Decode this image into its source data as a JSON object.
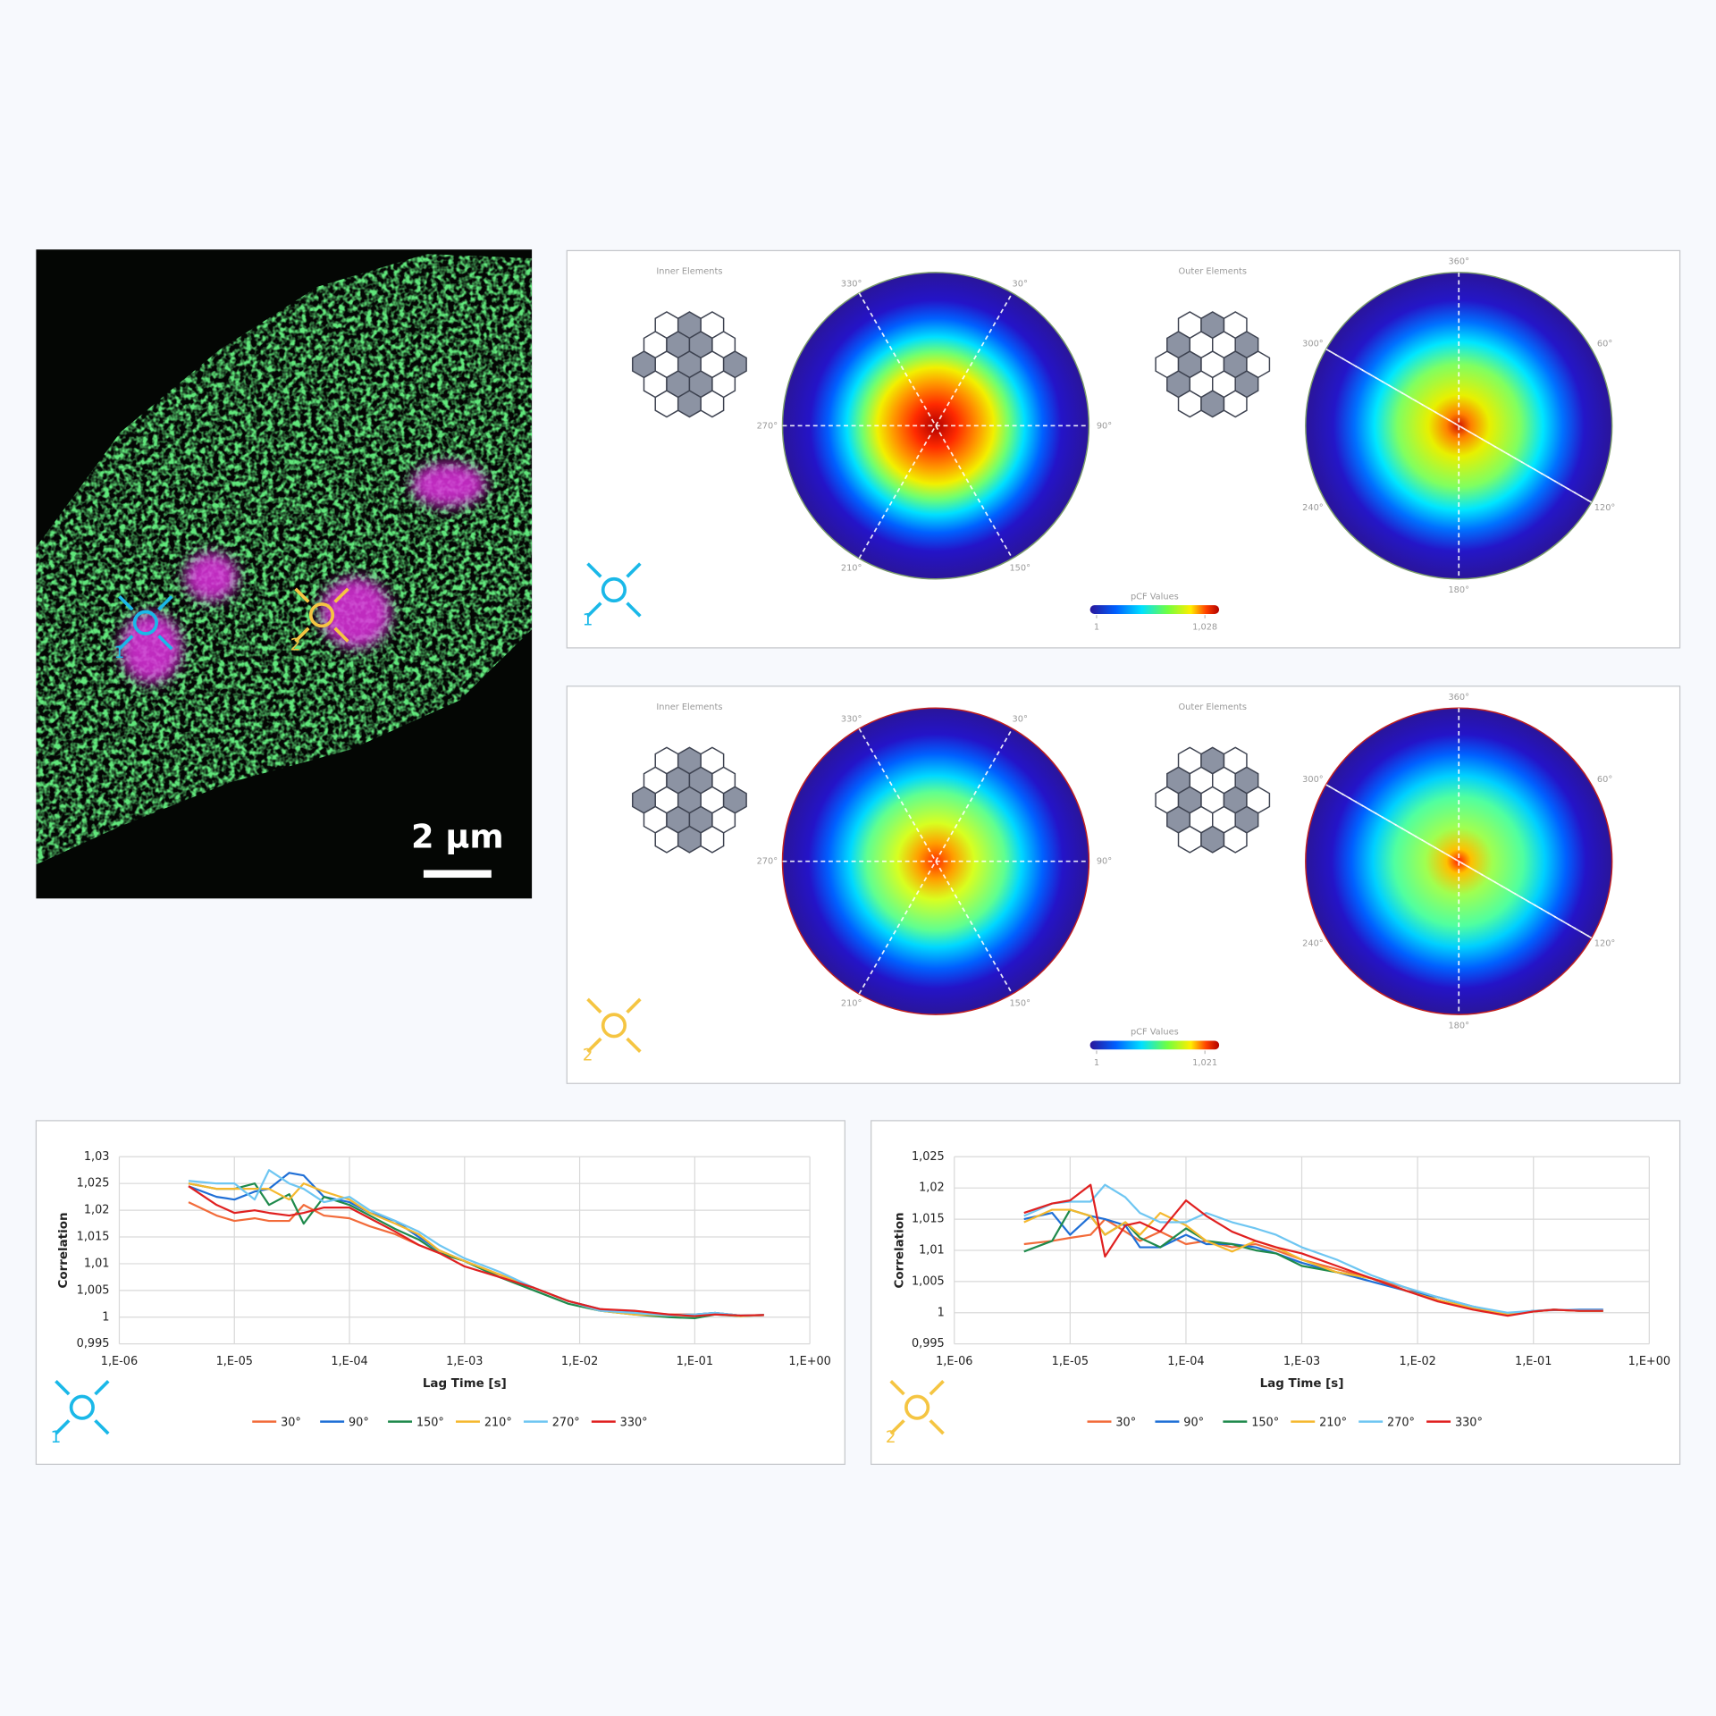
{
  "micrograph": {
    "scale_bar": "2 µm",
    "markers": [
      "1",
      "2"
    ]
  },
  "pcf_panels": [
    {
      "marker": "1",
      "inner_title": "Inner Elements",
      "outer_title": "Outer Elements",
      "inner_angles": [
        {
          "value": 330,
          "label": "330°"
        },
        {
          "value": 30,
          "label": "30°"
        },
        {
          "value": 270,
          "label": "270°"
        },
        {
          "value": 90,
          "label": "90°"
        },
        {
          "value": 210,
          "label": "210°"
        },
        {
          "value": 150,
          "label": "150°"
        }
      ],
      "outer_angles": [
        {
          "value": 360,
          "label": "360°"
        },
        {
          "value": 60,
          "label": "60°"
        },
        {
          "value": 300,
          "label": "300°"
        },
        {
          "value": 240,
          "label": "240°"
        },
        {
          "value": 120,
          "label": "120°"
        },
        {
          "value": 180,
          "label": "180°"
        }
      ],
      "colorbar_title": "pCF Values",
      "colorbar_ticks": [
        1,
        {
          "value": 1.028,
          "label": "1,028"
        }
      ]
    },
    {
      "marker": "2",
      "inner_title": "Inner Elements",
      "outer_title": "Outer Elements",
      "inner_angles": [
        {
          "value": 330,
          "label": "330°"
        },
        {
          "value": 30,
          "label": "30°"
        },
        {
          "value": 270,
          "label": "270°"
        },
        {
          "value": 90,
          "label": "90°"
        },
        {
          "value": 210,
          "label": "210°"
        },
        {
          "value": 150,
          "label": "150°"
        }
      ],
      "outer_angles": [
        {
          "value": 360,
          "label": "360°"
        },
        {
          "value": 60,
          "label": "60°"
        },
        {
          "value": 300,
          "label": "300°"
        },
        {
          "value": 240,
          "label": "240°"
        },
        {
          "value": 120,
          "label": "120°"
        },
        {
          "value": 180,
          "label": "180°"
        }
      ],
      "colorbar_title": "pCF Values",
      "colorbar_ticks": [
        1,
        {
          "value": 1.021,
          "label": "1,021"
        }
      ]
    }
  ],
  "chart_data": [
    {
      "type": "line",
      "marker": "1",
      "xlabel": "Lag Time [s]",
      "ylabel": "Correlation",
      "xlog": true,
      "grid": true,
      "legend": "bottom",
      "x": [
        4e-06,
        7e-06,
        1e-05,
        1.5e-05,
        2e-05,
        3e-05,
        4e-05,
        6e-05,
        0.0001,
        0.00015,
        0.00025,
        0.0004,
        0.0006,
        0.001,
        0.002,
        0.004,
        0.008,
        0.015,
        0.03,
        0.06,
        0.1,
        0.15,
        0.25,
        0.4
      ],
      "xlim": [
        1e-06,
        1
      ],
      "xticks": [
        {
          "value": 1e-06,
          "label": "1,E-06"
        },
        {
          "value": 1e-05,
          "label": "1,E-05"
        },
        {
          "value": 0.0001,
          "label": "1,E-04"
        },
        {
          "value": 0.001,
          "label": "1,E-03"
        },
        {
          "value": 0.01,
          "label": "1,E-02"
        },
        {
          "value": 0.1,
          "label": "1,E-01"
        },
        {
          "value": 1,
          "label": "1,E+00"
        }
      ],
      "ylim": [
        0.995,
        1.03
      ],
      "yticks": [
        {
          "value": 0.995,
          "label": "0,995"
        },
        1,
        {
          "value": 1.005,
          "label": "1,005"
        },
        {
          "value": 1.01,
          "label": "1,01"
        },
        {
          "value": 1.015,
          "label": "1,015"
        },
        {
          "value": 1.02,
          "label": "1,02"
        },
        {
          "value": 1.025,
          "label": "1,025"
        },
        {
          "value": 1.03,
          "label": "1,03"
        }
      ],
      "series": [
        {
          "name": "30°",
          "color": "#f26b3a",
          "values": [
            1.0215,
            1.019,
            1.018,
            1.0185,
            1.018,
            1.018,
            1.021,
            1.019,
            1.0185,
            1.017,
            1.0155,
            1.0135,
            1.012,
            1.0105,
            1.008,
            1.0055,
            1.003,
            1.0015,
            1.001,
            1.0005,
            1.0005,
            1.0008,
            1.0003,
            1.0004
          ]
        },
        {
          "name": "90°",
          "color": "#1f6fd6",
          "values": [
            1.0245,
            1.0225,
            1.022,
            1.0235,
            1.024,
            1.027,
            1.0265,
            1.0225,
            1.0215,
            1.0195,
            1.018,
            1.015,
            1.0125,
            1.0105,
            1.0075,
            1.0055,
            1.003,
            1.0015,
            1.0008,
            1.0004,
            1.0005,
            1.0008,
            1.0003,
            1.0004
          ]
        },
        {
          "name": "150°",
          "color": "#1f8a4c",
          "values": [
            1.025,
            1.024,
            1.024,
            1.025,
            1.021,
            1.023,
            1.0175,
            1.0225,
            1.021,
            1.019,
            1.0165,
            1.0145,
            1.012,
            1.0105,
            1.0075,
            1.005,
            1.0025,
            1.0012,
            1.0005,
            1.0,
            0.9998,
            1.0005,
            1.0002,
            1.0004
          ]
        },
        {
          "name": "210°",
          "color": "#f5b82e",
          "values": [
            1.025,
            1.024,
            1.024,
            1.024,
            1.024,
            1.022,
            1.025,
            1.0235,
            1.022,
            1.0195,
            1.0175,
            1.0155,
            1.0125,
            1.0105,
            1.008,
            1.0055,
            1.003,
            1.0012,
            1.0005,
            1.0003,
            1.0005,
            1.0006,
            1.0002,
            1.0004
          ]
        },
        {
          "name": "270°",
          "color": "#6ec6f2",
          "values": [
            1.0255,
            1.025,
            1.025,
            1.022,
            1.0275,
            1.025,
            1.024,
            1.0215,
            1.0225,
            1.02,
            1.018,
            1.016,
            1.0135,
            1.011,
            1.0085,
            1.0055,
            1.003,
            1.0012,
            1.0008,
            1.0003,
            1.0005,
            1.0008,
            1.0003,
            1.0004
          ]
        },
        {
          "name": "330°",
          "color": "#e02020",
          "values": [
            1.0245,
            1.021,
            1.0195,
            1.02,
            1.0195,
            1.019,
            1.0195,
            1.0205,
            1.0205,
            1.0185,
            1.016,
            1.0135,
            1.012,
            1.0095,
            1.0075,
            1.0055,
            1.003,
            1.0015,
            1.0012,
            1.0005,
            1.0002,
            1.0005,
            1.0003,
            1.0004
          ]
        }
      ]
    },
    {
      "type": "line",
      "marker": "2",
      "xlabel": "Lag Time [s]",
      "ylabel": "Correlation",
      "xlog": true,
      "grid": true,
      "legend": "bottom",
      "x": [
        4e-06,
        7e-06,
        1e-05,
        1.5e-05,
        2e-05,
        3e-05,
        4e-05,
        6e-05,
        0.0001,
        0.00015,
        0.00025,
        0.0004,
        0.0006,
        0.001,
        0.002,
        0.004,
        0.008,
        0.015,
        0.03,
        0.06,
        0.1,
        0.15,
        0.25,
        0.4
      ],
      "xlim": [
        1e-06,
        1
      ],
      "xticks": [
        {
          "value": 1e-06,
          "label": "1,E-06"
        },
        {
          "value": 1e-05,
          "label": "1,E-05"
        },
        {
          "value": 0.0001,
          "label": "1,E-04"
        },
        {
          "value": 0.001,
          "label": "1,E-03"
        },
        {
          "value": 0.01,
          "label": "1,E-02"
        },
        {
          "value": 0.1,
          "label": "1,E-01"
        },
        {
          "value": 1,
          "label": "1,E+00"
        }
      ],
      "ylim": [
        0.995,
        1.025
      ],
      "yticks": [
        {
          "value": 0.995,
          "label": "0,995"
        },
        1,
        {
          "value": 1.005,
          "label": "1,005"
        },
        {
          "value": 1.01,
          "label": "1,01"
        },
        {
          "value": 1.015,
          "label": "1,015"
        },
        {
          "value": 1.02,
          "label": "1,02"
        },
        {
          "value": 1.025,
          "label": "1,025"
        }
      ],
      "series": [
        {
          "name": "30°",
          "color": "#f26b3a",
          "values": [
            1.011,
            1.0115,
            1.012,
            1.0125,
            1.015,
            1.013,
            1.0115,
            1.013,
            1.011,
            1.0115,
            1.0105,
            1.011,
            1.01,
            1.0085,
            1.007,
            1.0055,
            1.004,
            1.002,
            1.0008,
            0.9998,
            1.0003,
            1.0005,
            1.0003,
            1.0003
          ]
        },
        {
          "name": "90°",
          "color": "#1f6fd6",
          "values": [
            1.015,
            1.016,
            1.0125,
            1.0155,
            1.015,
            1.014,
            1.0105,
            1.0105,
            1.0125,
            1.011,
            1.011,
            1.0105,
            1.0095,
            1.008,
            1.0065,
            1.005,
            1.0035,
            1.0025,
            1.001,
            0.9998,
            1.0003,
            1.0004,
            1.0005,
            1.0005
          ]
        },
        {
          "name": "150°",
          "color": "#1f8a4c",
          "values": [
            1.0098,
            1.0115,
            1.0165,
            1.0155,
            1.0125,
            1.0145,
            1.012,
            1.0105,
            1.0135,
            1.0115,
            1.011,
            1.01,
            1.0095,
            1.0075,
            1.0065,
            1.0055,
            1.0035,
            1.002,
            1.0008,
            0.9998,
            1.0002,
            1.0005,
            1.0003,
            1.0003
          ]
        },
        {
          "name": "210°",
          "color": "#f5b82e",
          "values": [
            1.0145,
            1.0165,
            1.0165,
            1.0155,
            1.0125,
            1.0145,
            1.0125,
            1.016,
            1.014,
            1.0115,
            1.0098,
            1.0115,
            1.0105,
            1.0085,
            1.0065,
            1.0055,
            1.0035,
            1.002,
            1.0008,
            0.9998,
            1.0002,
            1.0005,
            1.0003,
            1.0003
          ]
        },
        {
          "name": "270°",
          "color": "#6ec6f2",
          "values": [
            1.0155,
            1.0175,
            1.0178,
            1.0178,
            1.0205,
            1.0185,
            1.016,
            1.0145,
            1.0145,
            1.016,
            1.0145,
            1.0135,
            1.0125,
            1.0105,
            1.0085,
            1.006,
            1.004,
            1.0025,
            1.001,
            1.0,
            1.0003,
            1.0005,
            1.0004,
            1.0004
          ]
        },
        {
          "name": "330°",
          "color": "#e02020",
          "values": [
            1.016,
            1.0175,
            1.018,
            1.0205,
            1.009,
            1.014,
            1.0145,
            1.013,
            1.018,
            1.0155,
            1.013,
            1.0115,
            1.0105,
            1.0095,
            1.0075,
            1.0055,
            1.0035,
            1.0018,
            1.0005,
            0.9995,
            1.0002,
            1.0005,
            1.0003,
            1.0003
          ]
        }
      ]
    }
  ]
}
